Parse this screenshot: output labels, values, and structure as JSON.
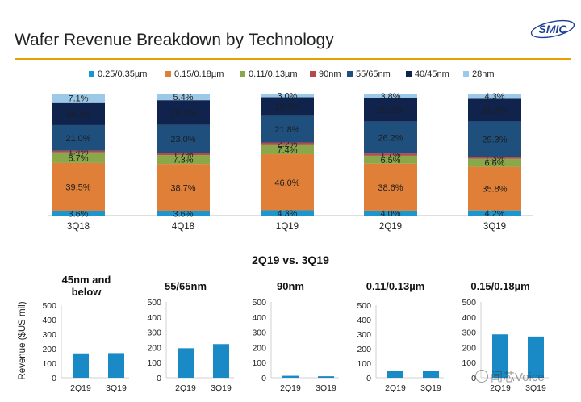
{
  "title": "Wafer Revenue Breakdown by Technology",
  "logo_text": "SMIC",
  "section_title": "2Q19 vs. 3Q19",
  "ylabel": "Revenue ($US mil)",
  "watermark": "闻芯Voice",
  "colors": {
    "accent_rule": "#e8a200",
    "logo": "#1c3f94",
    "small_bar": "#1a8ac6"
  },
  "chart_data": [
    {
      "type": "bar",
      "stacked": true,
      "normalized": true,
      "title": "Wafer Revenue Breakdown by Technology",
      "categories": [
        "3Q18",
        "4Q18",
        "1Q19",
        "2Q19",
        "3Q19"
      ],
      "legend_position": "top",
      "grid": false,
      "series": [
        {
          "name": "0.25/0.35µm",
          "color": "#1a97d0",
          "values": [
            3.6,
            3.6,
            4.3,
            4.0,
            4.2
          ],
          "labels": [
            "3.6%",
            "3.6%",
            "4.3%",
            "4.0%",
            "4.2%"
          ]
        },
        {
          "name": "0.15/0.18µm",
          "color": "#e07f37",
          "values": [
            39.5,
            38.7,
            46.0,
            38.6,
            35.8
          ],
          "labels": [
            "39.5%",
            "38.7%",
            "46.0%",
            "38.6%",
            "35.8%"
          ]
        },
        {
          "name": "0.11/0.13µm",
          "color": "#89a84a",
          "values": [
            8.7,
            7.3,
            7.4,
            6.5,
            6.6
          ],
          "labels": [
            "8.7%",
            "7.3%",
            "7.4%",
            "6.5%",
            "6.6%"
          ]
        },
        {
          "name": "90nm",
          "color": "#b64a4a",
          "values": [
            1.4,
            1.7,
            2.2,
            1.7,
            1.3
          ],
          "labels": [
            "1.4%",
            "1.7%",
            "2.2%",
            "1.7%",
            "1.3%"
          ]
        },
        {
          "name": "55/65nm",
          "color": "#1f4f7d",
          "values": [
            21.0,
            23.0,
            21.8,
            26.2,
            29.3
          ],
          "labels": [
            "21.0%",
            "23.0%",
            "21.8%",
            "26.2%",
            "29.3%"
          ]
        },
        {
          "name": "40/45nm",
          "color": "#10234d",
          "values": [
            18.7,
            20.3,
            15.3,
            19.2,
            18.5
          ],
          "labels": [
            "18.7%",
            "20.3%",
            "15.3%",
            "19.2%",
            "18.5%"
          ]
        },
        {
          "name": "28nm",
          "color": "#9dc9e8",
          "values": [
            7.1,
            5.4,
            3.0,
            3.8,
            4.3
          ],
          "labels": [
            "7.1%",
            "5.4%",
            "3.0%",
            "3.8%",
            "4.3%"
          ]
        }
      ]
    },
    {
      "type": "bar",
      "title": "45nm and below",
      "categories": [
        "2Q19",
        "3Q19"
      ],
      "values": [
        168,
        170
      ],
      "ylim": [
        0,
        500
      ],
      "yticks": [
        0,
        100,
        200,
        300,
        400,
        500
      ],
      "ylabel": "Revenue ($US mil)"
    },
    {
      "type": "bar",
      "title": "55/65nm",
      "categories": [
        "2Q19",
        "3Q19"
      ],
      "values": [
        195,
        222
      ],
      "ylim": [
        0,
        500
      ],
      "yticks": [
        0,
        100,
        200,
        300,
        400,
        500
      ]
    },
    {
      "type": "bar",
      "title": "90nm",
      "categories": [
        "2Q19",
        "3Q19"
      ],
      "values": [
        13,
        10
      ],
      "ylim": [
        0,
        500
      ],
      "yticks": [
        0,
        100,
        200,
        300,
        400,
        500
      ]
    },
    {
      "type": "bar",
      "title": "0.11/0.13µm",
      "categories": [
        "2Q19",
        "3Q19"
      ],
      "values": [
        48,
        50
      ],
      "ylim": [
        0,
        500
      ],
      "yticks": [
        0,
        100,
        200,
        300,
        400,
        500
      ]
    },
    {
      "type": "bar",
      "title": "0.15/0.18µm",
      "categories": [
        "2Q19",
        "3Q19"
      ],
      "values": [
        286,
        272
      ],
      "ylim": [
        0,
        500
      ],
      "yticks": [
        0,
        100,
        200,
        300,
        400,
        500
      ]
    }
  ]
}
